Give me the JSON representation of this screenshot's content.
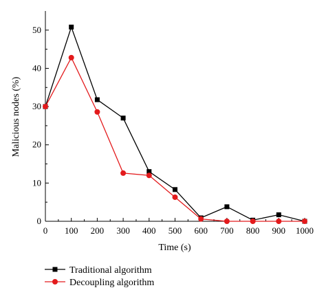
{
  "chart_data": {
    "type": "line",
    "title": "",
    "xlabel": "Time (s)",
    "ylabel": "Malicious nodes (%)",
    "x": [
      0,
      100,
      200,
      300,
      400,
      500,
      600,
      700,
      800,
      900,
      1000
    ],
    "xlim": [
      0,
      1000
    ],
    "ylim": [
      0,
      55
    ],
    "xticks": [
      0,
      100,
      200,
      300,
      400,
      500,
      600,
      700,
      800,
      900,
      1000
    ],
    "yticks": [
      0,
      10,
      20,
      30,
      40,
      50
    ],
    "grid": false,
    "legend_position": "bottom-left, below plot",
    "series": [
      {
        "name": "Traditional algorithm",
        "color": "#000000",
        "marker": "square",
        "values": [
          30,
          50.8,
          31.8,
          27,
          13,
          8.3,
          0.9,
          3.8,
          0.3,
          1.7,
          0
        ]
      },
      {
        "name": "Decoupling algorithm",
        "color": "#e31a1c",
        "marker": "circle",
        "values": [
          30,
          42.8,
          28.6,
          12.6,
          12,
          6.3,
          0.6,
          0,
          0,
          0,
          0
        ]
      }
    ]
  }
}
